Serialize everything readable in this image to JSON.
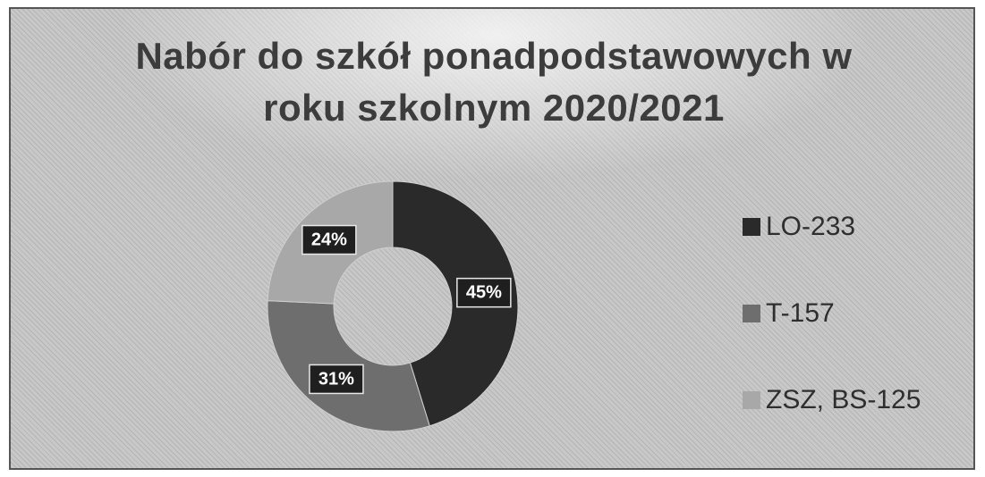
{
  "chart_data": {
    "type": "pie",
    "variant": "doughnut",
    "title_lines": [
      "Nabór do szkół ponadpodstawowych w",
      "roku szkolnym 2020/2021"
    ],
    "categories": [
      "LO-233",
      "T-157",
      "ZSZ, BS-125"
    ],
    "values": [
      233,
      157,
      125
    ],
    "percent_labels": [
      "45%",
      "31%",
      "24%"
    ],
    "colors": [
      "#2a2a2a",
      "#6e6e6e",
      "#a8a8a8"
    ],
    "legend": {
      "position": "right",
      "entries": [
        "LO-233",
        "T-157",
        "ZSZ, BS-125"
      ]
    }
  }
}
